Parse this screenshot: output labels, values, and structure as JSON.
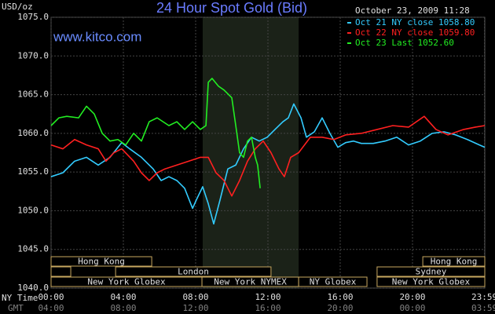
{
  "chart_data": {
    "type": "line",
    "title": "24 Hour Spot Gold (Bid)",
    "timestamp": "October 23, 2009 11:28",
    "watermark": "www.kitco.com",
    "y_label": "USD/oz",
    "x_label": "NY Time",
    "x2_label": "GMT",
    "xlim": [
      0,
      24
    ],
    "ylim": [
      1040,
      1075
    ],
    "grid": true,
    "yticks": [
      {
        "value": 1040,
        "label": "1040.0"
      },
      {
        "value": 1045,
        "label": "1045.0"
      },
      {
        "value": 1050,
        "label": "1050.0"
      },
      {
        "value": 1055,
        "label": "1055.0"
      },
      {
        "value": 1060,
        "label": "1060.0"
      },
      {
        "value": 1065,
        "label": "1065.0"
      },
      {
        "value": 1070,
        "label": "1070.0"
      },
      {
        "value": 1075,
        "label": "1075.0"
      }
    ],
    "xticks": [
      {
        "value": 0,
        "label": "00:00"
      },
      {
        "value": 4,
        "label": "04:00"
      },
      {
        "value": 8,
        "label": "08:00"
      },
      {
        "value": 12,
        "label": "12:00"
      },
      {
        "value": 16,
        "label": "16:00"
      },
      {
        "value": 20,
        "label": "20:00"
      },
      {
        "value": 23.98,
        "label": "23:59"
      }
    ],
    "x2ticks": [
      {
        "value": 0,
        "label": "04:00"
      },
      {
        "value": 4,
        "label": "08:00"
      },
      {
        "value": 8,
        "label": "12:00"
      },
      {
        "value": 12,
        "label": "16:00"
      },
      {
        "value": 16,
        "label": "20:00"
      },
      {
        "value": 20,
        "label": "00:00"
      },
      {
        "value": 23.98,
        "label": "03:59"
      }
    ],
    "shaded": [
      8.39,
      13.7
    ],
    "sessions": [
      [
        {
          "label": "Hong Kong",
          "start": 0,
          "end": 5.57
        },
        {
          "label": "Hong Kong",
          "start": 20.57,
          "end": 24
        }
      ],
      [
        {
          "label": null,
          "start": 0,
          "end": 1.09
        },
        {
          "label": "London",
          "start": 3.57,
          "end": 12.17
        },
        {
          "label": "Sydney",
          "start": 18.04,
          "end": 24
        }
      ],
      [
        {
          "label": "New York Globex",
          "start": 0,
          "end": 8.35
        },
        {
          "label": "New York NYMEX",
          "start": 8.35,
          "end": 13.7
        },
        {
          "label": "NY Globex",
          "start": 13.7,
          "end": 17.48
        },
        {
          "label": "New York Globex",
          "start": 18.04,
          "end": 24
        }
      ]
    ],
    "series": [
      {
        "name": "Oct 21 NY close 1058.80",
        "color": "#33ccff",
        "x": [
          0,
          0.65,
          1.3,
          1.96,
          2.61,
          3.26,
          3.91,
          4.35,
          5.0,
          5.65,
          6.09,
          6.52,
          6.96,
          7.39,
          7.83,
          8.04,
          8.39,
          8.7,
          9.0,
          9.35,
          9.78,
          10.22,
          10.65,
          11.09,
          11.52,
          11.96,
          12.39,
          12.83,
          13.13,
          13.43,
          13.83,
          14.13,
          14.57,
          15.0,
          15.43,
          15.87,
          16.3,
          16.74,
          17.17,
          17.83,
          18.48,
          19.13,
          19.78,
          20.43,
          21.09,
          21.74,
          22.39,
          23.04,
          23.7,
          24
        ],
        "values": [
          1054.4,
          1054.9,
          1056.4,
          1056.9,
          1055.9,
          1056.9,
          1058.8,
          1058.0,
          1056.9,
          1055.4,
          1053.9,
          1054.4,
          1053.9,
          1052.9,
          1050.3,
          1051.4,
          1053.1,
          1050.9,
          1048.3,
          1051.4,
          1055.4,
          1055.9,
          1058.0,
          1059.5,
          1059.0,
          1059.5,
          1060.5,
          1061.5,
          1062.0,
          1063.8,
          1062.0,
          1059.5,
          1060.2,
          1062.0,
          1060.0,
          1058.2,
          1058.8,
          1059.0,
          1058.7,
          1058.7,
          1059.0,
          1059.5,
          1058.5,
          1059.0,
          1060.0,
          1060.2,
          1059.8,
          1059.2,
          1058.5,
          1058.2
        ]
      },
      {
        "name": "Oct 22 NY close 1059.80",
        "color": "#ff2020",
        "x": [
          0,
          0.65,
          1.3,
          1.96,
          2.61,
          3.04,
          3.48,
          3.91,
          4.57,
          5.0,
          5.43,
          5.87,
          6.3,
          6.96,
          7.61,
          8.26,
          8.7,
          9.13,
          9.57,
          10.0,
          10.43,
          10.87,
          11.3,
          11.74,
          12.17,
          12.61,
          12.91,
          13.26,
          13.7,
          14.35,
          15.0,
          15.65,
          16.3,
          17.17,
          18.04,
          18.91,
          19.78,
          20.65,
          21.3,
          21.96,
          22.83,
          23.48,
          24
        ],
        "values": [
          1058.5,
          1058.0,
          1059.2,
          1058.5,
          1058.0,
          1056.4,
          1057.5,
          1058.0,
          1056.4,
          1054.9,
          1053.9,
          1054.9,
          1055.4,
          1055.9,
          1056.4,
          1056.9,
          1056.9,
          1054.9,
          1053.9,
          1051.9,
          1053.9,
          1056.4,
          1058.0,
          1059.0,
          1057.5,
          1055.4,
          1054.4,
          1056.9,
          1057.5,
          1059.5,
          1059.5,
          1059.2,
          1059.8,
          1060.0,
          1060.5,
          1061.0,
          1060.8,
          1062.2,
          1060.5,
          1059.8,
          1060.5,
          1060.8,
          1061.0
        ]
      },
      {
        "name": "Oct 23 Last 1052.60",
        "color": "#22ee22",
        "x": [
          0,
          0.43,
          0.87,
          1.52,
          1.96,
          2.39,
          2.83,
          3.26,
          3.7,
          4.13,
          4.57,
          5.0,
          5.43,
          5.87,
          6.52,
          6.96,
          7.39,
          7.83,
          8.26,
          8.57,
          8.7,
          8.91,
          9.26,
          9.57,
          10.0,
          10.22,
          10.43,
          10.65,
          10.87,
          11.09,
          11.3,
          11.43,
          11.57
        ],
        "values": [
          1061.0,
          1062.0,
          1062.2,
          1062.0,
          1063.5,
          1062.5,
          1060.0,
          1059.0,
          1059.2,
          1058.5,
          1060.0,
          1059.0,
          1061.5,
          1062.0,
          1061.0,
          1061.5,
          1060.5,
          1061.5,
          1060.5,
          1061.0,
          1066.6,
          1067.1,
          1066.1,
          1065.6,
          1064.6,
          1061.0,
          1057.5,
          1056.9,
          1059.0,
          1059.5,
          1056.9,
          1055.9,
          1052.9
        ]
      }
    ]
  }
}
